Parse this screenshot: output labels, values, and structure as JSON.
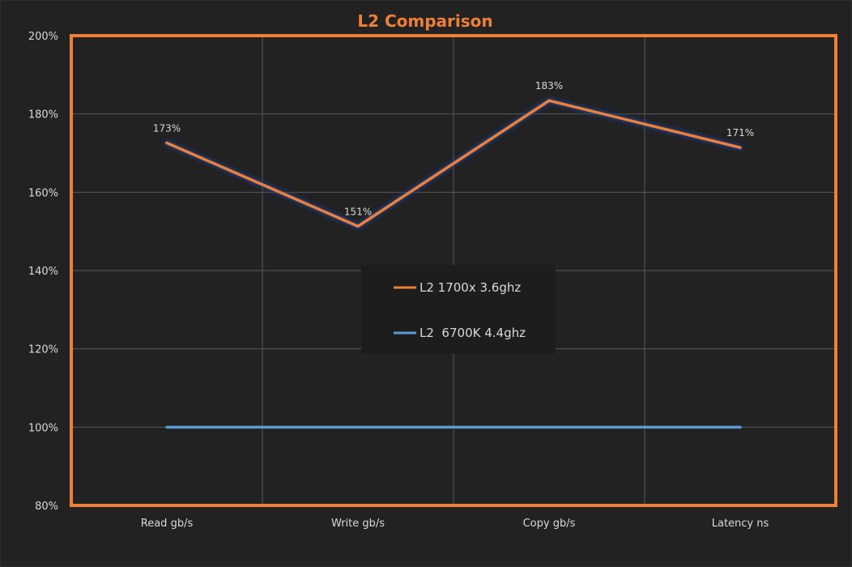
{
  "chart_data": {
    "type": "line",
    "title": "L2 Comparison",
    "categories": [
      "Read gb/s",
      "Write gb/s",
      "Copy gb/s",
      "Latency ns"
    ],
    "y_ticks": [
      "80%",
      "100%",
      "120%",
      "140%",
      "160%",
      "180%",
      "200%"
    ],
    "ylim": [
      80,
      200
    ],
    "grid": true,
    "legend_position": "center",
    "series": [
      {
        "name": "L2 1700x 3.6ghz",
        "values": [
          172.6,
          151.3,
          183.4,
          171.4
        ],
        "labels": [
          "173%",
          "151%",
          "183%",
          "171%"
        ],
        "color": "#f07f35",
        "glow": "#1f3f8f"
      },
      {
        "name": "L2  6700K 4.4ghz",
        "values": [
          100,
          100,
          100,
          100
        ],
        "color": "#5b9bd5",
        "glow": "#c55a11"
      }
    ],
    "colors": {
      "background": "#222222",
      "frame": "#f07f35",
      "title": "#f07f35",
      "grid": "#595959",
      "text": "#d9d9d9",
      "legend_bg": "#1d1d1d"
    }
  }
}
